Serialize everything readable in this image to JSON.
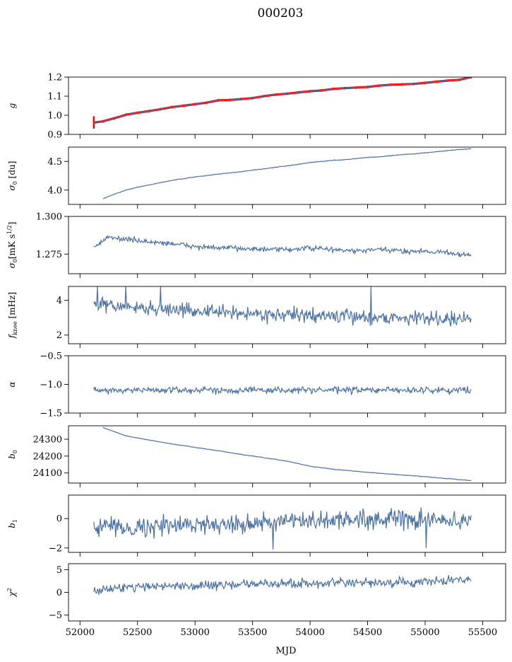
{
  "figure": {
    "title": "000203",
    "xlabel": "MJD",
    "line_color": "#4c72a4",
    "error_color": "#ff0000"
  },
  "chart_data": [
    {
      "type": "line",
      "ylabel": "g",
      "xlim": [
        51900,
        55700
      ],
      "ylim": [
        0.9,
        1.2
      ],
      "yticks": [
        0.9,
        1.0,
        1.1,
        1.2
      ],
      "ytick_labels": [
        "0.9",
        "1.0",
        "1.1",
        "1.2"
      ],
      "series": [
        {
          "values_x": [
            52120,
            52200,
            52300,
            52400,
            52500,
            52600,
            52700,
            52800,
            52900,
            53000,
            53100,
            53200,
            53300,
            53400,
            53500,
            53600,
            53700,
            53800,
            53900,
            54000,
            54100,
            54200,
            54300,
            54400,
            54500,
            54600,
            54700,
            54800,
            54900,
            55000,
            55100,
            55200,
            55300,
            55400
          ],
          "values_y": [
            0.962,
            0.968,
            0.985,
            1.003,
            1.013,
            1.022,
            1.032,
            1.043,
            1.05,
            1.058,
            1.066,
            1.078,
            1.08,
            1.085,
            1.09,
            1.1,
            1.108,
            1.113,
            1.12,
            1.126,
            1.13,
            1.138,
            1.142,
            1.145,
            1.148,
            1.155,
            1.16,
            1.162,
            1.164,
            1.17,
            1.176,
            1.182,
            1.186,
            1.2
          ],
          "error_bars": {
            "x": 52120,
            "low": 0.93,
            "high": 0.995
          }
        }
      ]
    },
    {
      "type": "line",
      "ylabel": "σ0 [du]",
      "xlim": [
        51900,
        55700
      ],
      "ylim": [
        3.75,
        4.75
      ],
      "yticks": [
        4.0,
        4.5
      ],
      "ytick_labels": [
        "4.0",
        "4.5"
      ],
      "series": [
        {
          "values_x": [
            52200,
            52300,
            52400,
            52500,
            52600,
            52700,
            52800,
            52900,
            53000,
            53100,
            53200,
            53300,
            53400,
            53500,
            53600,
            53700,
            53800,
            53900,
            54000,
            54100,
            54200,
            54300,
            54400,
            54500,
            54600,
            54700,
            54800,
            54900,
            55000,
            55100,
            55200,
            55300,
            55400
          ],
          "values_y": [
            3.85,
            3.93,
            4.0,
            4.05,
            4.09,
            4.13,
            4.17,
            4.2,
            4.23,
            4.25,
            4.28,
            4.3,
            4.32,
            4.35,
            4.37,
            4.4,
            4.42,
            4.45,
            4.48,
            4.5,
            4.52,
            4.53,
            4.55,
            4.57,
            4.58,
            4.6,
            4.62,
            4.63,
            4.65,
            4.67,
            4.69,
            4.71,
            4.72
          ],
          "noise": 0.004
        }
      ]
    },
    {
      "type": "line",
      "ylabel": "σ0[mK s^1/2]",
      "xlim": [
        51900,
        55700
      ],
      "ylim": [
        1.262,
        1.3
      ],
      "yticks": [
        1.275,
        1.3
      ],
      "ytick_labels": [
        "1.275",
        "1.300"
      ],
      "series": [
        {
          "values_x": [
            52120,
            52250,
            52400,
            52600,
            52800,
            53000,
            53200,
            53400,
            53600,
            53800,
            54000,
            54200,
            54400,
            54600,
            54800,
            55000,
            55200,
            55400
          ],
          "values_y": [
            1.28,
            1.286,
            1.285,
            1.283,
            1.282,
            1.28,
            1.279,
            1.279,
            1.278,
            1.278,
            1.279,
            1.278,
            1.277,
            1.278,
            1.277,
            1.277,
            1.276,
            1.274
          ],
          "noise": 0.0012
        }
      ]
    },
    {
      "type": "line",
      "ylabel": "f_knee [mHz]",
      "xlim": [
        51900,
        55700
      ],
      "ylim": [
        1.5,
        4.8
      ],
      "yticks": [
        2,
        4
      ],
      "ytick_labels": [
        "2",
        "4"
      ],
      "series": [
        {
          "values_x": [
            52120,
            52400,
            52700,
            53000,
            53400,
            53800,
            54200,
            54600,
            55000,
            55400
          ],
          "values_y": [
            3.8,
            3.6,
            3.5,
            3.4,
            3.25,
            3.15,
            3.1,
            3.0,
            3.0,
            2.9
          ],
          "noise": 0.28,
          "spikes": [
            [
              52150,
              4.8
            ],
            [
              52400,
              4.8
            ],
            [
              52700,
              4.8
            ],
            [
              54530,
              4.8
            ]
          ]
        }
      ]
    },
    {
      "type": "line",
      "ylabel": "α",
      "xlim": [
        51900,
        55700
      ],
      "ylim": [
        -1.5,
        -0.5
      ],
      "yticks": [
        -1.5,
        -1.0,
        -0.5
      ],
      "ytick_labels": [
        "−1.5",
        "−1.0",
        "−0.5"
      ],
      "series": [
        {
          "values_x": [
            52120,
            55400
          ],
          "values_y": [
            -1.1,
            -1.1
          ],
          "noise": 0.04
        }
      ]
    },
    {
      "type": "line",
      "ylabel": "b0",
      "xlim": [
        51900,
        55700
      ],
      "ylim": [
        24040,
        24380
      ],
      "yticks": [
        24100,
        24200,
        24300
      ],
      "ytick_labels": [
        "24100",
        "24200",
        "24300"
      ],
      "series": [
        {
          "values_x": [
            52200,
            52300,
            52400,
            52600,
            52800,
            53000,
            53200,
            53400,
            53600,
            53800,
            54000,
            54200,
            54400,
            54600,
            54800,
            55000,
            55200,
            55400
          ],
          "values_y": [
            24370,
            24345,
            24320,
            24295,
            24272,
            24252,
            24232,
            24210,
            24190,
            24170,
            24140,
            24122,
            24110,
            24098,
            24088,
            24078,
            24066,
            24055
          ],
          "noise": 1.2
        }
      ]
    },
    {
      "type": "line",
      "ylabel": "b1",
      "xlim": [
        51900,
        55700
      ],
      "ylim": [
        -2.3,
        1.6
      ],
      "yticks": [
        -2,
        0
      ],
      "ytick_labels": [
        "−2",
        "0"
      ],
      "series": [
        {
          "values_x": [
            52120,
            52500,
            53000,
            53500,
            54000,
            54500,
            55000,
            55400
          ],
          "values_y": [
            -0.5,
            -0.6,
            -0.4,
            -0.3,
            -0.2,
            0.0,
            -0.1,
            -0.2
          ],
          "noise": 0.45,
          "spikes": [
            [
              53680,
              -2.1
            ],
            [
              55010,
              -2.0
            ]
          ]
        }
      ]
    },
    {
      "type": "line",
      "ylabel": "χ2",
      "xlim": [
        51900,
        55700
      ],
      "ylim": [
        -6.3,
        6.3
      ],
      "yticks": [
        -5,
        0,
        5
      ],
      "ytick_labels": [
        "−5",
        "0",
        "5"
      ],
      "xticks": [
        52000,
        52500,
        53000,
        53500,
        54000,
        54500,
        55000,
        55500
      ],
      "xtick_labels": [
        "52000",
        "52500",
        "53000",
        "53500",
        "54000",
        "54500",
        "55000",
        "55500"
      ],
      "series": [
        {
          "values_x": [
            52120,
            52500,
            53000,
            53500,
            54000,
            54500,
            55000,
            55400
          ],
          "values_y": [
            0.5,
            1.3,
            1.5,
            1.8,
            2.0,
            2.0,
            2.2,
            3.0
          ],
          "noise": 0.7
        }
      ]
    }
  ]
}
